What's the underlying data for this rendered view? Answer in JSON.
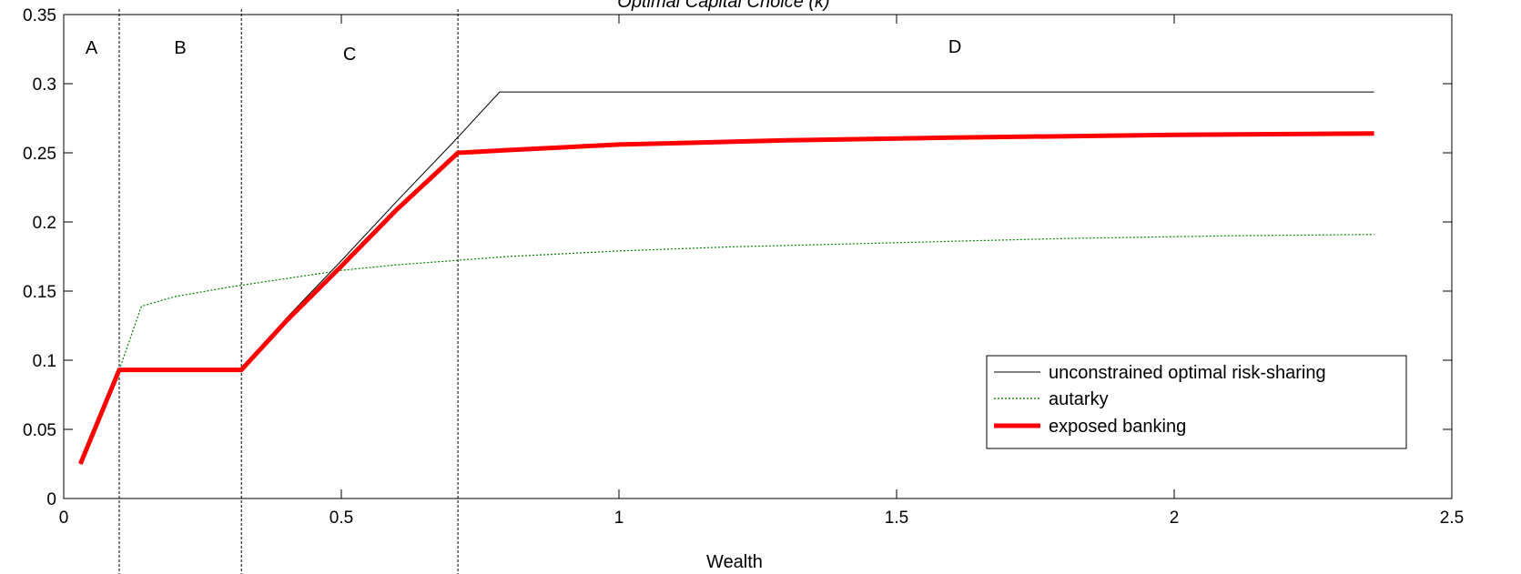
{
  "chart_data": {
    "type": "line",
    "title": "Optimal Capital Choice (k)",
    "xlabel": "Wealth",
    "ylabel": "",
    "xlim": [
      0,
      2.5
    ],
    "ylim": [
      0,
      0.35
    ],
    "x_ticks": [
      {
        "value": 0,
        "label": "0"
      },
      {
        "value": 0.5,
        "label": "0.5"
      },
      {
        "value": 1,
        "label": "1"
      },
      {
        "value": 1.5,
        "label": "1.5"
      },
      {
        "value": 2,
        "label": "2"
      },
      {
        "value": 2.5,
        "label": "2.5"
      }
    ],
    "y_ticks": [
      {
        "value": 0,
        "label": "0"
      },
      {
        "value": 0.05,
        "label": "0.05"
      },
      {
        "value": 0.1,
        "label": "0.1"
      },
      {
        "value": 0.15,
        "label": "0.15"
      },
      {
        "value": 0.2,
        "label": "0.2"
      },
      {
        "value": 0.25,
        "label": "0.25"
      },
      {
        "value": 0.3,
        "label": "0.3"
      },
      {
        "value": 0.35,
        "label": "0.35"
      }
    ],
    "grid": false,
    "legend_position": "bottom-right",
    "regions": [
      {
        "label": "A",
        "x_start": 0,
        "x_end": 0.1
      },
      {
        "label": "B",
        "x_start": 0.1,
        "x_end": 0.32
      },
      {
        "label": "C",
        "x_start": 0.32,
        "x_end": 0.71
      },
      {
        "label": "D",
        "x_start": 0.71,
        "x_end": 2.5
      }
    ],
    "region_boundaries": [
      0.1,
      0.32,
      0.71
    ],
    "series": [
      {
        "name": "unconstrained optimal risk-sharing",
        "color": "#000000",
        "style": "solid",
        "width": "thin",
        "points": [
          [
            0.03,
            0.025
          ],
          [
            0.1,
            0.093
          ],
          [
            0.32,
            0.093
          ],
          [
            0.4,
            0.13
          ],
          [
            0.5,
            0.172
          ],
          [
            0.6,
            0.215
          ],
          [
            0.7,
            0.257
          ],
          [
            0.785,
            0.294
          ],
          [
            2.36,
            0.294
          ]
        ]
      },
      {
        "name": "autarky",
        "color": "#008000",
        "style": "dotted",
        "width": "thin",
        "points": [
          [
            0.03,
            0.025
          ],
          [
            0.1,
            0.093
          ],
          [
            0.14,
            0.139
          ],
          [
            0.2,
            0.146
          ],
          [
            0.3,
            0.153
          ],
          [
            0.4,
            0.159
          ],
          [
            0.5,
            0.165
          ],
          [
            0.6,
            0.169
          ],
          [
            0.7,
            0.172
          ],
          [
            0.8,
            0.175
          ],
          [
            1.0,
            0.179
          ],
          [
            1.2,
            0.182
          ],
          [
            1.5,
            0.185
          ],
          [
            1.8,
            0.188
          ],
          [
            2.1,
            0.19
          ],
          [
            2.36,
            0.191
          ]
        ]
      },
      {
        "name": "exposed banking",
        "color": "#ff0000",
        "style": "solid",
        "width": "thick",
        "points": [
          [
            0.03,
            0.025
          ],
          [
            0.1,
            0.093
          ],
          [
            0.32,
            0.093
          ],
          [
            0.4,
            0.128
          ],
          [
            0.5,
            0.168
          ],
          [
            0.6,
            0.209
          ],
          [
            0.71,
            0.25
          ],
          [
            0.8,
            0.252
          ],
          [
            1.0,
            0.256
          ],
          [
            1.3,
            0.259
          ],
          [
            1.6,
            0.261
          ],
          [
            2.0,
            0.263
          ],
          [
            2.36,
            0.264
          ]
        ]
      }
    ]
  }
}
